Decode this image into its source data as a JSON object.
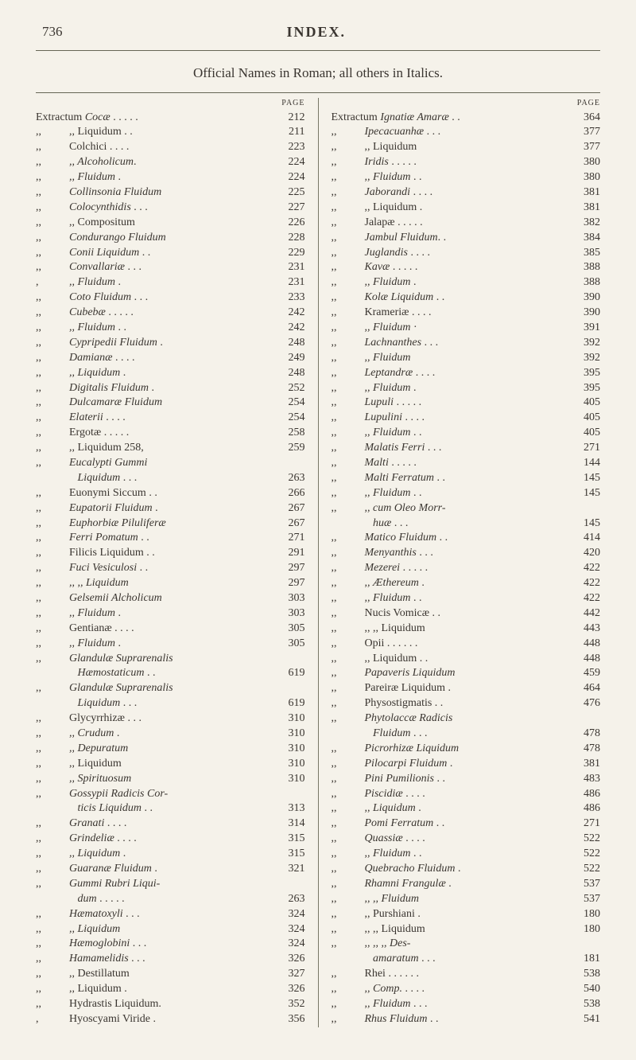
{
  "pageNumber": "736",
  "indexTitle": "INDEX.",
  "subtitle": "Official Names in Roman; all others in Italics.",
  "pageLabel": "PAGE",
  "colors": {
    "background": "#f5f2ea",
    "text": "#3a3530",
    "rule": "#665"
  },
  "typography": {
    "fontFamily": "Times New Roman",
    "bodySize": 14,
    "headerSize": 18,
    "pageLabel": 10
  },
  "leftColumn": [
    {
      "prefix": "Extractum",
      "text": "Cocæ",
      "italic": true,
      "dots": "  .  .  .  .  .",
      "page": "212"
    },
    {
      "prefix": ",,",
      "text": ",,  Liquidum",
      "dots": "  .  .",
      "page": "211"
    },
    {
      "prefix": ",,",
      "text": "Colchici",
      "dots": "  .  .  .  .",
      "page": "223"
    },
    {
      "prefix": ",,",
      "text": ",,  Alcoholicum",
      "italic": true,
      "dots": ".",
      "page": "224"
    },
    {
      "prefix": ",,",
      "text": ",,  Fluidum",
      "italic": true,
      "dots": "   .",
      "page": "224"
    },
    {
      "prefix": ",,",
      "text": "Collinsonia Fluidum",
      "italic": true,
      "dots": "",
      "page": "225"
    },
    {
      "prefix": ",,",
      "text": "Colocynthidis",
      "italic": true,
      "dots": "  .  .  .",
      "page": "227"
    },
    {
      "prefix": ",,",
      "text": ",,  Compositum",
      "dots": "",
      "page": "226"
    },
    {
      "prefix": ",,",
      "text": "Condurango Fluidum",
      "italic": true,
      "dots": "",
      "page": "228"
    },
    {
      "prefix": ",,",
      "text": "Conii Liquidum",
      "italic": true,
      "dots": "  .  .",
      "page": "229"
    },
    {
      "prefix": ",,",
      "text": "Convallariæ",
      "italic": true,
      "dots": "  .  .  .",
      "page": "231"
    },
    {
      "prefix": ",",
      "text": ",,  Fluidum",
      "italic": true,
      "dots": " .",
      "page": "231"
    },
    {
      "prefix": ",,",
      "text": "Coto Fluidum",
      "italic": true,
      "dots": " .  .  .",
      "page": "233"
    },
    {
      "prefix": ",,",
      "text": "Cubebæ",
      "italic": true,
      "dots": "  .  .  .  .  .",
      "page": "242"
    },
    {
      "prefix": ",,",
      "text": ",,  Fluidum",
      "italic": true,
      "dots": "  .  .",
      "page": "242"
    },
    {
      "prefix": ",,",
      "text": "Cypripedii Fluidum",
      "italic": true,
      "dots": " .",
      "page": "248"
    },
    {
      "prefix": ",,",
      "text": "Damianæ",
      "italic": true,
      "dots": "  .  .  .  .",
      "page": "249"
    },
    {
      "prefix": ",,",
      "text": ",,  Liquidum",
      "italic": true,
      "dots": " .",
      "page": "248"
    },
    {
      "prefix": ",,",
      "text": "Digitalis Fluidum",
      "italic": true,
      "dots": "  .",
      "page": "252"
    },
    {
      "prefix": ",,",
      "text": "Dulcamaræ Fluidum",
      "italic": true,
      "dots": "",
      "page": "254"
    },
    {
      "prefix": ",,",
      "text": "Elaterii",
      "italic": true,
      "dots": "  .  .  .  .",
      "page": "254"
    },
    {
      "prefix": ",,",
      "text": "Ergotæ",
      "dots": "  .  .  .  .  .",
      "page": "258"
    },
    {
      "prefix": ",,",
      "text": ",,  Liquidum  258,",
      "dots": "",
      "page": "259"
    },
    {
      "prefix": ",,",
      "text": "Eucalypti Gummi",
      "italic": true,
      "dots": "",
      "page": ""
    },
    {
      "prefix": "",
      "text": "  Liquidum",
      "italic": true,
      "dots": "  .  .  .",
      "page": "263"
    },
    {
      "prefix": ",,",
      "text": "Euonymi Siccum",
      "dots": " .  .",
      "page": "266"
    },
    {
      "prefix": ",,",
      "text": "Eupatorii Fluidum",
      "italic": true,
      "dots": " .",
      "page": "267"
    },
    {
      "prefix": ",,",
      "text": "Euphorbiæ Piluliferæ",
      "italic": true,
      "dots": "",
      "page": "267"
    },
    {
      "prefix": ",,",
      "text": "Ferri Pomatum",
      "italic": true,
      "dots": "  .  .",
      "page": "271"
    },
    {
      "prefix": ",,",
      "text": "Filicis Liquidum",
      "dots": "  .  .",
      "page": "291"
    },
    {
      "prefix": ",,",
      "text": "Fuci Vesiculosi",
      "italic": true,
      "dots": "  .  .",
      "page": "297"
    },
    {
      "prefix": ",,",
      "text": ",,  ,,  Liquidum",
      "italic": true,
      "dots": "",
      "page": "297"
    },
    {
      "prefix": ",,",
      "text": "Gelsemii Alcholicum",
      "italic": true,
      "dots": "",
      "page": "303"
    },
    {
      "prefix": ",,",
      "text": ",,  Fluidum",
      "italic": true,
      "dots": "   .",
      "page": "303"
    },
    {
      "prefix": ",,",
      "text": "Gentianæ",
      "dots": "  .  .  .  .",
      "page": "305"
    },
    {
      "prefix": ",,",
      "text": ",,  Fluidum",
      "italic": true,
      "dots": "   .",
      "page": "305"
    },
    {
      "prefix": ",,",
      "text": "Glandulæ Suprarenalis",
      "italic": true,
      "dots": "",
      "page": ""
    },
    {
      "prefix": "",
      "text": "  Hæmostaticum",
      "italic": true,
      "dots": " .  .",
      "page": "619"
    },
    {
      "prefix": ",,",
      "text": "Glandulæ Suprarenalis",
      "italic": true,
      "dots": "",
      "page": ""
    },
    {
      "prefix": "",
      "text": "  Liquidum",
      "italic": true,
      "dots": "  .  .  .",
      "page": "619"
    },
    {
      "prefix": ",,",
      "text": "Glycyrrhizæ",
      "dots": "  .  .  .",
      "page": "310"
    },
    {
      "prefix": ",,",
      "text": ",,  Crudum",
      "italic": true,
      "dots": " .",
      "page": "310"
    },
    {
      "prefix": ",,",
      "text": ",,  Depuratum",
      "italic": true,
      "dots": "",
      "page": "310"
    },
    {
      "prefix": ",,",
      "text": ",,  Liquidum",
      "dots": "",
      "page": "310"
    },
    {
      "prefix": ",,",
      "text": ",,  Spirituosum",
      "italic": true,
      "dots": "",
      "page": "310"
    },
    {
      "prefix": ",,",
      "text": "Gossypii Radicis Cor-",
      "italic": true,
      "dots": "",
      "page": ""
    },
    {
      "prefix": "",
      "text": "  ticis Liquidum",
      "italic": true,
      "dots": " .  .",
      "page": "313"
    },
    {
      "prefix": ",,",
      "text": "Granati",
      "italic": true,
      "dots": "  .  .  .  .",
      "page": "314"
    },
    {
      "prefix": ",,",
      "text": "Grindeliæ",
      "italic": true,
      "dots": "  .  .  .  .",
      "page": "315"
    },
    {
      "prefix": ",,",
      "text": ",,  Liquidum",
      "italic": true,
      "dots": "  .",
      "page": "315"
    },
    {
      "prefix": ",,",
      "text": "Guaranæ Fluidum",
      "italic": true,
      "dots": "  .",
      "page": "321"
    },
    {
      "prefix": ",,",
      "text": "Gummi Rubri Liqui-",
      "italic": true,
      "dots": "",
      "page": ""
    },
    {
      "prefix": "",
      "text": "  dum",
      "italic": true,
      "dots": " .  .  .  .  .",
      "page": "263"
    },
    {
      "prefix": ",,",
      "text": "Hæmatoxyli",
      "italic": true,
      "dots": "  .  .  .",
      "page": "324"
    },
    {
      "prefix": ",,",
      "text": ",,  Liquidum",
      "italic": true,
      "dots": "",
      "page": "324"
    },
    {
      "prefix": ",,",
      "text": "Hæmoglobini",
      "italic": true,
      "dots": "  .  .  .",
      "page": "324"
    },
    {
      "prefix": ",,",
      "text": "Hamamelidis",
      "italic": true,
      "dots": "  .  .  .",
      "page": "326"
    },
    {
      "prefix": ",,",
      "text": ",,  Destillatum",
      "dots": "",
      "page": "327"
    },
    {
      "prefix": ",,",
      "text": ",,  Liquidum",
      "dots": "  .",
      "page": "326"
    },
    {
      "prefix": ",,",
      "text": "Hydrastis Liquidum",
      "dots": ".",
      "page": "352"
    },
    {
      "prefix": ",",
      "text": "Hyoscyami Viride",
      "dots": "  .",
      "page": "356"
    }
  ],
  "rightColumn": [
    {
      "prefix": "Extractum",
      "text": "Ignatiæ Amaræ",
      "italic": true,
      "dots": "  .  .",
      "page": "364"
    },
    {
      "prefix": ",,",
      "text": "Ipecacuanhæ",
      "italic": true,
      "dots": "  .  .  .",
      "page": "377"
    },
    {
      "prefix": ",,",
      "text": ",,  Liquidum",
      "dots": "",
      "page": "377"
    },
    {
      "prefix": ",,",
      "text": "Iridis",
      "italic": true,
      "dots": "  .  .  .  .  .",
      "page": "380"
    },
    {
      "prefix": ",,",
      "text": ",,  Fluidum",
      "italic": true,
      "dots": "   .  .",
      "page": "380"
    },
    {
      "prefix": ",,",
      "text": "Jaborandi",
      "italic": true,
      "dots": "  .  .  .  .",
      "page": "381"
    },
    {
      "prefix": ",,",
      "text": ",,  Liquidum",
      "dots": "  .",
      "page": "381"
    },
    {
      "prefix": ",,",
      "text": "Jalapæ",
      "dots": "  .  .  .  .  .",
      "page": "382"
    },
    {
      "prefix": ",,",
      "text": "Jambul Fluidum",
      "italic": true,
      "dots": ".  .",
      "page": "384"
    },
    {
      "prefix": ",,",
      "text": "Juglandis",
      "italic": true,
      "dots": "  .  .  .  .",
      "page": "385"
    },
    {
      "prefix": ",,",
      "text": "Kavæ",
      "italic": true,
      "dots": "  .  .  .  .  .",
      "page": "388"
    },
    {
      "prefix": ",,",
      "text": ",,  Fluidum",
      "italic": true,
      "dots": " .",
      "page": "388"
    },
    {
      "prefix": ",,",
      "text": "Kolæ Liquidum",
      "italic": true,
      "dots": "  .  .",
      "page": "390"
    },
    {
      "prefix": ",,",
      "text": "Krameriæ",
      "dots": "  .  .  .  .",
      "page": "390"
    },
    {
      "prefix": ",,",
      "text": ",,  Fluidum",
      "italic": true,
      "dots": "  ·",
      "page": "391"
    },
    {
      "prefix": ",,",
      "text": "Lachnanthes",
      "italic": true,
      "dots": "  .  .  .",
      "page": "392"
    },
    {
      "prefix": ",,",
      "text": ",,  Fluidum",
      "italic": true,
      "dots": "",
      "page": "392"
    },
    {
      "prefix": ",,",
      "text": "Leptandræ",
      "italic": true,
      "dots": " .  .  .  .",
      "page": "395"
    },
    {
      "prefix": ",,",
      "text": ",,  Fluidum",
      "italic": true,
      "dots": "  .",
      "page": "395"
    },
    {
      "prefix": ",,",
      "text": "Lupuli",
      "italic": true,
      "dots": "  .  .  .  .  .",
      "page": "405"
    },
    {
      "prefix": ",,",
      "text": "Lupulini",
      "italic": true,
      "dots": "  .  .  .  .",
      "page": "405"
    },
    {
      "prefix": ",,",
      "text": ",,  Fluidum",
      "italic": true,
      "dots": "  .  .",
      "page": "405"
    },
    {
      "prefix": ",,",
      "text": "Malatis Ferri",
      "italic": true,
      "dots": "  .  .  .",
      "page": "271"
    },
    {
      "prefix": ",,",
      "text": "Malti",
      "italic": true,
      "dots": "  .  .  .  .  .",
      "page": "144"
    },
    {
      "prefix": ",,",
      "text": "Malti Ferratum",
      "italic": true,
      "dots": "  .  .",
      "page": "145"
    },
    {
      "prefix": ",,",
      "text": ",,  Fluidum",
      "italic": true,
      "dots": "  .  .",
      "page": "145"
    },
    {
      "prefix": ",,",
      "text": ",,  cum Oleo Morr-",
      "italic": true,
      "dots": "",
      "page": ""
    },
    {
      "prefix": "",
      "text": "  huæ",
      "italic": true,
      "dots": "  .  .  .",
      "page": "145"
    },
    {
      "prefix": ",,",
      "text": "Matico Fluidum",
      "italic": true,
      "dots": "  .  .",
      "page": "414"
    },
    {
      "prefix": ",,",
      "text": "Menyanthis",
      "italic": true,
      "dots": "   .  .  .",
      "page": "420"
    },
    {
      "prefix": ",,",
      "text": "Mezerei",
      "italic": true,
      "dots": "  .  .  .  .  .",
      "page": "422"
    },
    {
      "prefix": ",,",
      "text": ",,  Æthereum",
      "italic": true,
      "dots": "  .",
      "page": "422"
    },
    {
      "prefix": ",,",
      "text": ",,  Fluidum",
      "italic": true,
      "dots": "  .  .",
      "page": "422"
    },
    {
      "prefix": ",,",
      "text": "Nucis Vomicæ",
      "dots": "  .  .",
      "page": "442"
    },
    {
      "prefix": ",,",
      "text": ",,  ,,  Liquidum",
      "dots": "",
      "page": "443"
    },
    {
      "prefix": ",,",
      "text": "Opii",
      "dots": "  .  .  .  .  .  .",
      "page": "448"
    },
    {
      "prefix": ",,",
      "text": ",,  Liquidum",
      "dots": "  .  .",
      "page": "448"
    },
    {
      "prefix": ",,",
      "text": "Papaveris Liquidum",
      "italic": true,
      "dots": "",
      "page": "459"
    },
    {
      "prefix": ",,",
      "text": "Pareiræ Liquidum",
      "dots": "  .",
      "page": "464"
    },
    {
      "prefix": ",,",
      "text": "Physostigmatis",
      "dots": "  .  .",
      "page": "476"
    },
    {
      "prefix": ",,",
      "text": "Phytolaccæ  Radicis",
      "italic": true,
      "dots": "",
      "page": ""
    },
    {
      "prefix": "",
      "text": "  Fluidum",
      "italic": true,
      "dots": "  .  .  .",
      "page": "478"
    },
    {
      "prefix": ",,",
      "text": "Picrorhizæ Liquidum",
      "italic": true,
      "dots": "",
      "page": "478"
    },
    {
      "prefix": ",,",
      "text": "Pilocarpi Fluidum",
      "italic": true,
      "dots": "  .",
      "page": "381"
    },
    {
      "prefix": ",,",
      "text": "Pini Pumilionis",
      "italic": true,
      "dots": "  .  .",
      "page": "483"
    },
    {
      "prefix": ",,",
      "text": "Piscidiæ",
      "italic": true,
      "dots": "  .  .  .  .",
      "page": "486"
    },
    {
      "prefix": ",,",
      "text": ",,  Liquidum",
      "italic": true,
      "dots": "  .",
      "page": "486"
    },
    {
      "prefix": ",,",
      "text": "Pomi Ferratum",
      "italic": true,
      "dots": "  .  .",
      "page": "271"
    },
    {
      "prefix": ",,",
      "text": "Quassiæ",
      "italic": true,
      "dots": "  .  .  .  .",
      "page": "522"
    },
    {
      "prefix": ",,",
      "text": ",,  Fluidum",
      "italic": true,
      "dots": "  .  .",
      "page": "522"
    },
    {
      "prefix": ",,",
      "text": "Quebracho Fluidum",
      "italic": true,
      "dots": "  .",
      "page": "522"
    },
    {
      "prefix": ",,",
      "text": "Rhamni Frangulæ",
      "italic": true,
      "dots": "  .",
      "page": "537"
    },
    {
      "prefix": ",,",
      "text": ",,  ,,  Fluidum",
      "italic": true,
      "dots": "",
      "page": "537"
    },
    {
      "prefix": ",,",
      "text": ",,  Purshiani",
      "dots": "  .",
      "page": "180"
    },
    {
      "prefix": ",,",
      "text": ",,  ,, Liquidum",
      "dots": "",
      "page": "180"
    },
    {
      "prefix": ",,",
      "text": ",,  ,,  ,,  Des-",
      "italic": true,
      "dots": "",
      "page": ""
    },
    {
      "prefix": "",
      "text": "  amaratum",
      "italic": true,
      "dots": "  .  .  .",
      "page": "181"
    },
    {
      "prefix": ",,",
      "text": "Rhei",
      "dots": " .  .  .  .  .  .",
      "page": "538"
    },
    {
      "prefix": ",,",
      "text": ",,  Comp.",
      "italic": true,
      "dots": " .  .  .  .",
      "page": "540"
    },
    {
      "prefix": ",,",
      "text": ",,  Fluidum",
      "italic": true,
      "dots": " .  .  .",
      "page": "538"
    },
    {
      "prefix": ",,",
      "text": "Rhus Fluidum",
      "italic": true,
      "dots": "   .  .",
      "page": "541"
    }
  ]
}
